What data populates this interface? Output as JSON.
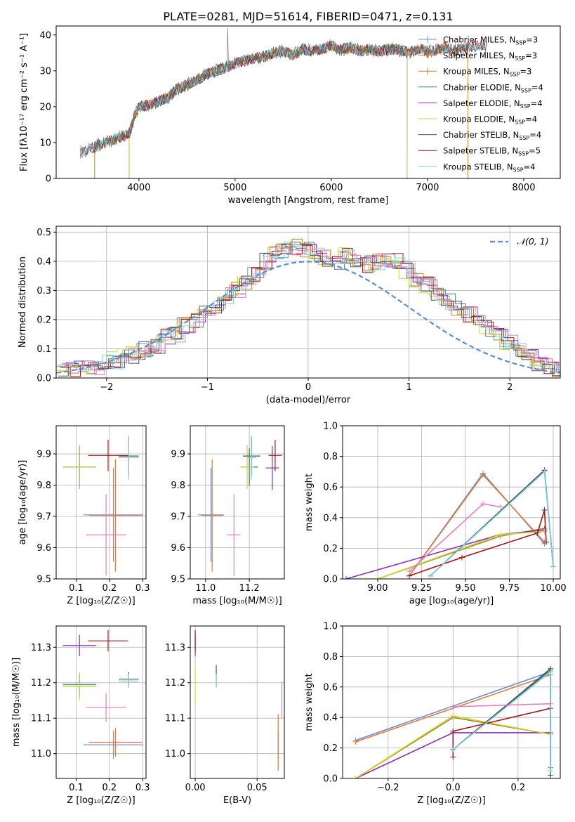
{
  "title": "PLATE=0281, MJD=51614, FIBERID=0471, z=0.131",
  "colors": {
    "Chabrier MILES": "#6c8ed8",
    "Salpeter MILES": "#e07b39",
    "Kroupa MILES": "#a88520",
    "Chabrier ELODIE": "#3f7f7f",
    "Salpeter ELODIE": "#8e2bb0",
    "Kroupa ELODIE": "#c8d83a",
    "Chabrier STELIB": "#505050",
    "Salpeter STELIB": "#a01818",
    "Kroupa STELIB": "#7fd0e0",
    "pink": "#e47cc4",
    "gauss": "#5a8fd8"
  },
  "chart_data": [
    {
      "id": "spectrum",
      "type": "line",
      "title": "PLATE=0281, MJD=51614, FIBERID=0471, z=0.131",
      "xlabel": "wavelength [Angstrom, rest frame]",
      "ylabel": "Flux [fλ10⁻¹⁷ erg cm⁻² s⁻¹ A⁻¹]",
      "xlim": [
        3140,
        8380
      ],
      "ylim": [
        0,
        42.5
      ],
      "xticks": [
        4000,
        5000,
        6000,
        7000,
        8000
      ],
      "yticks": [
        0,
        10,
        20,
        30,
        40
      ],
      "grid": false,
      "legend_position": "top-right",
      "x": [
        3390,
        3500,
        3600,
        3700,
        3800,
        3900,
        3950,
        4000,
        4100,
        4200,
        4300,
        4400,
        4500,
        4600,
        4700,
        4800,
        4900,
        5000,
        5100,
        5200,
        5300,
        5400,
        5500,
        5600,
        5700,
        5800,
        5900,
        6000,
        6100,
        6200,
        6300,
        6400,
        6500,
        6600,
        6700,
        6800,
        6900,
        7000,
        7100,
        7200,
        7300,
        7400,
        7500,
        7600
      ],
      "y": [
        7.5,
        8.5,
        9.5,
        10.5,
        11.5,
        12.5,
        17,
        20,
        20.5,
        21.5,
        22.5,
        25,
        26,
        27.5,
        29,
        30,
        31,
        32,
        33,
        33.5,
        34,
        35,
        35.5,
        34.5,
        36,
        35.5,
        36,
        37,
        36,
        36.5,
        35.5,
        36,
        35.5,
        36,
        36,
        35,
        36,
        35.5,
        36,
        36.5,
        35.5,
        36.5,
        37,
        37
      ],
      "series": [
        {
          "name": "Chabrier MILES, Nₛₛₚ=3",
          "legend": {
            "name": "Chabrier MILES, N",
            "sub": "SSP",
            "tail": "=3"
          },
          "x_range": [
            3540,
            7420
          ]
        },
        {
          "name": "Salpeter MILES, Nₛₛₚ=3",
          "legend": {
            "name": "Salpeter MILES, N",
            "sub": "SSP",
            "tail": "=3"
          },
          "x_range": [
            3540,
            7420
          ]
        },
        {
          "name": "Kroupa MILES, Nₛₛₚ=3",
          "legend": {
            "name": "Kroupa MILES, N",
            "sub": "SSP",
            "tail": "=3"
          },
          "x_range": [
            3540,
            7420
          ]
        },
        {
          "name": "Chabrier ELODIE, Nₛₛₚ=4",
          "legend": {
            "name": "Chabrier ELODIE, N",
            "sub": "SSP",
            "tail": "=4"
          },
          "x_range": [
            3900,
            6790
          ]
        },
        {
          "name": "Salpeter ELODIE, Nₛₛₚ=4",
          "legend": {
            "name": "Salpeter ELODIE, N",
            "sub": "SSP",
            "tail": "=4"
          },
          "x_range": [
            3900,
            6790
          ]
        },
        {
          "name": "Kroupa ELODIE, Nₛₛₚ=4",
          "legend": {
            "name": "Kroupa ELODIE, N",
            "sub": "SSP",
            "tail": "=4"
          },
          "x_range": [
            3900,
            6790
          ]
        },
        {
          "name": "Chabrier STELIB, Nₛₛₚ=4",
          "legend": {
            "name": "Chabrier STELIB, N",
            "sub": "SSP",
            "tail": "=4"
          },
          "x_range": [
            3390,
            8380
          ]
        },
        {
          "name": "Salpeter STELIB, Nₛₛₚ=5",
          "legend": {
            "name": "Salpeter STELIB, N",
            "sub": "SSP",
            "tail": "=5"
          },
          "x_range": [
            3390,
            8380
          ]
        },
        {
          "name": "Kroupa STELIB, Nₛₛₚ=4",
          "legend": {
            "name": "Kroupa STELIB, N",
            "sub": "SSP",
            "tail": "=4"
          },
          "x_range": [
            3390,
            8380
          ]
        }
      ]
    },
    {
      "id": "residuals",
      "type": "histogram",
      "xlabel": "(data-model)/error",
      "ylabel": "Normed distribution",
      "xlim": [
        -2.5,
        2.5
      ],
      "ylim": [
        0,
        0.52
      ],
      "xticks": [
        -2,
        -1,
        0,
        1,
        2
      ],
      "yticks": [
        0.0,
        0.1,
        0.2,
        0.3,
        0.4,
        0.5
      ],
      "grid": true,
      "legend": [
        "𝒩(0, 1)"
      ],
      "legend_position": "top-right",
      "bin_width": 0.1,
      "bin_start": -2.5,
      "values": [
        0.03,
        0.03,
        0.04,
        0.04,
        0.05,
        0.06,
        0.07,
        0.08,
        0.1,
        0.11,
        0.14,
        0.15,
        0.18,
        0.2,
        0.22,
        0.25,
        0.28,
        0.3,
        0.33,
        0.36,
        0.4,
        0.43,
        0.44,
        0.45,
        0.44,
        0.42,
        0.41,
        0.4,
        0.42,
        0.41,
        0.39,
        0.4,
        0.41,
        0.4,
        0.37,
        0.34,
        0.32,
        0.29,
        0.26,
        0.24,
        0.22,
        0.19,
        0.17,
        0.14,
        0.12,
        0.09,
        0.07,
        0.05,
        0.04,
        0.03
      ]
    },
    {
      "id": "age_vs_Z",
      "type": "scatter",
      "xlabel": "Z [log₁₀(Z/Z☉)]",
      "ylabel": "age  [log₁₀(age/yr)]",
      "xlim": [
        0.04,
        0.31
      ],
      "ylim": [
        9.5,
        9.99
      ],
      "xticks": [
        0.1,
        0.2,
        0.3
      ],
      "yticks": [
        9.5,
        9.6,
        9.7,
        9.8,
        9.9
      ],
      "grid": true,
      "points": [
        {
          "series": "Chabrier MILES",
          "x": 0.212,
          "y": 9.705,
          "xerr": 0.09,
          "yerr": 0.15
        },
        {
          "series": "Salpeter MILES",
          "x": 0.218,
          "y": 9.703,
          "xerr": 0.08,
          "yerr": 0.18
        },
        {
          "series": "Kroupa MILES",
          "x": 0.11,
          "y": 9.858,
          "xerr": 0.05,
          "yerr": 0.06
        },
        {
          "series": "Chabrier ELODIE",
          "x": 0.11,
          "y": 9.858,
          "xerr": 0.05,
          "yerr": 0.06
        },
        {
          "series": "Salpeter ELODIE",
          "x": 0.11,
          "y": 9.858,
          "xerr": 0.05,
          "yerr": 0.07
        },
        {
          "series": "Kroupa ELODIE",
          "x": 0.11,
          "y": 9.858,
          "xerr": 0.05,
          "yerr": 0.07
        },
        {
          "series": "Chabrier STELIB",
          "x": 0.258,
          "y": 9.893,
          "xerr": 0.03,
          "yerr": 0.06
        },
        {
          "series": "Salpeter STELIB",
          "x": 0.196,
          "y": 9.895,
          "xerr": 0.06,
          "yerr": 0.05
        },
        {
          "series": "Kroupa STELIB",
          "x": 0.258,
          "y": 9.888,
          "xerr": 0.03,
          "yerr": 0.07
        },
        {
          "series": "pink",
          "x": 0.19,
          "y": 9.641,
          "xerr": 0.06,
          "yerr": 0.13
        }
      ]
    },
    {
      "id": "age_vs_mass",
      "type": "scatter",
      "xlabel": "mass [log₁₀(M/M☉)]",
      "ylabel": "",
      "xlim": [
        10.93,
        11.36
      ],
      "ylim": [
        9.5,
        9.99
      ],
      "xticks": [
        11.0,
        11.2
      ],
      "yticks": [
        9.5,
        9.6,
        9.7,
        9.8,
        9.9
      ],
      "grid": true,
      "points": [
        {
          "series": "Chabrier MILES",
          "x": 11.025,
          "y": 9.705,
          "xerr": 0.06,
          "yerr": 0.15
        },
        {
          "series": "Salpeter MILES",
          "x": 11.03,
          "y": 9.703,
          "xerr": 0.05,
          "yerr": 0.18
        },
        {
          "series": "Kroupa MILES",
          "x": 11.2,
          "y": 9.858,
          "xerr": 0.04,
          "yerr": 0.06
        },
        {
          "series": "Chabrier ELODIE",
          "x": 11.2,
          "y": 9.858,
          "xerr": 0.04,
          "yerr": 0.06
        },
        {
          "series": "Salpeter ELODIE",
          "x": 11.305,
          "y": 9.855,
          "xerr": 0.03,
          "yerr": 0.07
        },
        {
          "series": "Kroupa ELODIE",
          "x": 11.19,
          "y": 9.858,
          "xerr": 0.03,
          "yerr": 0.07
        },
        {
          "series": "Chabrier STELIB",
          "x": 11.21,
          "y": 9.893,
          "xerr": 0.04,
          "yerr": 0.06
        },
        {
          "series": "Salpeter STELIB",
          "x": 11.318,
          "y": 9.895,
          "xerr": 0.03,
          "yerr": 0.05
        },
        {
          "series": "Kroupa STELIB",
          "x": 11.21,
          "y": 9.888,
          "xerr": 0.02,
          "yerr": 0.07
        },
        {
          "series": "pink",
          "x": 11.13,
          "y": 9.641,
          "xerr": 0.03,
          "yerr": 0.13
        }
      ]
    },
    {
      "id": "weight_vs_age",
      "type": "line",
      "xlabel": "age  [log₁₀(age/yr)]",
      "ylabel": "mass weight",
      "xlim": [
        8.8,
        10.04
      ],
      "ylim": [
        0,
        1.0
      ],
      "xticks": [
        9.0,
        9.25,
        9.5,
        9.75,
        10.0
      ],
      "yticks": [
        0.0,
        0.2,
        0.4,
        0.6,
        0.8,
        1.0
      ],
      "grid": true,
      "series": [
        {
          "name": "Chabrier MILES",
          "x": [
            9.18,
            9.6,
            9.95
          ],
          "y": [
            0.02,
            0.69,
            0.23
          ]
        },
        {
          "name": "Salpeter MILES",
          "x": [
            9.18,
            9.6,
            9.95
          ],
          "y": [
            0.02,
            0.68,
            0.24
          ]
        },
        {
          "name": "Kroupa MILES",
          "x": [
            9.0,
            9.7,
            9.95
          ],
          "y": [
            0.0,
            0.28,
            0.33
          ]
        },
        {
          "name": "Chabrier ELODIE",
          "x": [
            9.3,
            9.95,
            10.0
          ],
          "y": [
            0.02,
            0.71,
            0.08
          ]
        },
        {
          "name": "Salpeter ELODIE",
          "x": [
            8.82,
            9.7,
            9.95
          ],
          "y": [
            0.0,
            0.29,
            0.32
          ]
        },
        {
          "name": "Kroupa ELODIE",
          "x": [
            9.0,
            9.7,
            9.95
          ],
          "y": [
            0.0,
            0.29,
            0.31
          ]
        },
        {
          "name": "Chabrier STELIB",
          "x": [
            9.3,
            9.95,
            10.0
          ],
          "y": [
            0.02,
            0.71,
            0.08
          ]
        },
        {
          "name": "Salpeter STELIB",
          "x": [
            9.18,
            9.48,
            9.91,
            9.95,
            9.96
          ],
          "y": [
            0.02,
            0.14,
            0.3,
            0.45,
            0.24
          ]
        },
        {
          "name": "Kroupa STELIB",
          "x": [
            9.3,
            9.95,
            10.0
          ],
          "y": [
            0.02,
            0.7,
            0.08
          ]
        },
        {
          "name": "pink",
          "x": [
            9.18,
            9.6,
            9.7
          ],
          "y": [
            0.05,
            0.49,
            0.47
          ]
        }
      ]
    },
    {
      "id": "mass_vs_Z",
      "type": "scatter",
      "xlabel": "Z [log₁₀(Z/Z☉)]",
      "ylabel": "mass [log₁₀(M/M☉)]",
      "xlim": [
        0.04,
        0.31
      ],
      "ylim": [
        10.93,
        11.36
      ],
      "xticks": [
        0.1,
        0.2,
        0.3
      ],
      "yticks": [
        11.0,
        11.1,
        11.2,
        11.3
      ],
      "grid": true,
      "points": [
        {
          "series": "Chabrier MILES",
          "x": 0.212,
          "y": 11.025,
          "xerr": 0.09,
          "yerr": 0.04
        },
        {
          "series": "Salpeter MILES",
          "x": 0.218,
          "y": 11.032,
          "xerr": 0.08,
          "yerr": 0.04
        },
        {
          "series": "Kroupa MILES",
          "x": 0.11,
          "y": 11.19,
          "xerr": 0.05,
          "yerr": 0.03
        },
        {
          "series": "Chabrier ELODIE",
          "x": 0.11,
          "y": 11.195,
          "xerr": 0.05,
          "yerr": 0.03
        },
        {
          "series": "Salpeter ELODIE",
          "x": 0.11,
          "y": 11.305,
          "xerr": 0.05,
          "yerr": 0.03
        },
        {
          "series": "Kroupa ELODIE",
          "x": 0.11,
          "y": 11.19,
          "xerr": 0.05,
          "yerr": 0.04
        },
        {
          "series": "Chabrier STELIB",
          "x": 0.258,
          "y": 11.21,
          "xerr": 0.03,
          "yerr": 0.02
        },
        {
          "series": "Salpeter STELIB",
          "x": 0.196,
          "y": 11.318,
          "xerr": 0.06,
          "yerr": 0.03
        },
        {
          "series": "Kroupa STELIB",
          "x": 0.258,
          "y": 11.205,
          "xerr": 0.03,
          "yerr": 0.02
        },
        {
          "series": "pink",
          "x": 0.19,
          "y": 11.13,
          "xerr": 0.06,
          "yerr": 0.04
        }
      ]
    },
    {
      "id": "mass_vs_ebv",
      "type": "scatter",
      "xlabel": "E(B-V)",
      "ylabel": "",
      "xlim": [
        -0.004,
        0.072
      ],
      "ylim": [
        10.93,
        11.36
      ],
      "xticks": [
        0.0,
        0.05
      ],
      "yticks": [
        11.0,
        11.1,
        11.2,
        11.3
      ],
      "grid": true,
      "points": [
        {
          "series": "Chabrier MILES",
          "x": 0.067,
          "y": 11.025,
          "xerr": 0,
          "yerr": 0.04
        },
        {
          "series": "Salpeter MILES",
          "x": 0.067,
          "y": 11.032,
          "xerr": 0,
          "yerr": 0.08
        },
        {
          "series": "Kroupa ELODIE",
          "x": 0.0,
          "y": 11.19,
          "xerr": 0,
          "yerr": 0.05
        },
        {
          "series": "Salpeter ELODIE",
          "x": 0.0,
          "y": 11.305,
          "xerr": 0,
          "yerr": 0.03
        },
        {
          "series": "Salpeter STELIB",
          "x": 0.0,
          "y": 11.318,
          "xerr": 0,
          "yerr": 0.03
        },
        {
          "series": "Chabrier STELIB",
          "x": 0.017,
          "y": 11.22,
          "xerr": 0,
          "yerr": 0.03
        },
        {
          "series": "Kroupa STELIB",
          "x": 0.017,
          "y": 11.205,
          "xerr": 0,
          "yerr": 0.02
        },
        {
          "series": "pink",
          "x": 0.07,
          "y": 11.15,
          "xerr": 0,
          "yerr": 0.05
        }
      ]
    },
    {
      "id": "weight_vs_Z",
      "type": "line",
      "xlabel": "Z [log₁₀(Z/Z☉)]",
      "ylabel": "mass weight",
      "xlim": [
        -0.34,
        0.33
      ],
      "ylim": [
        0,
        1.0
      ],
      "xticks": [
        -0.2,
        0.0,
        0.2
      ],
      "yticks": [
        0.0,
        0.2,
        0.4,
        0.6,
        0.8,
        1.0
      ],
      "grid": true,
      "series": [
        {
          "name": "Chabrier MILES",
          "x": [
            -0.3,
            0.3
          ],
          "y": [
            0.25,
            0.7
          ]
        },
        {
          "name": "Salpeter MILES",
          "x": [
            -0.3,
            0.3
          ],
          "y": [
            0.24,
            0.68
          ]
        },
        {
          "name": "Kroupa MILES",
          "x": [
            -0.3,
            0.0,
            0.3
          ],
          "y": [
            0.0,
            0.4,
            0.29
          ]
        },
        {
          "name": "Chabrier ELODIE",
          "x": [
            0.0,
            0.3,
            0.3
          ],
          "y": [
            0.19,
            0.71,
            0.07
          ]
        },
        {
          "name": "Salpeter ELODIE",
          "x": [
            -0.3,
            0.0,
            0.3
          ],
          "y": [
            0.0,
            0.3,
            0.3
          ]
        },
        {
          "name": "Kroupa ELODIE",
          "x": [
            -0.3,
            0.0,
            0.3
          ],
          "y": [
            0.0,
            0.41,
            0.29
          ]
        },
        {
          "name": "Chabrier STELIB",
          "x": [
            0.0,
            0.3,
            0.3
          ],
          "y": [
            0.19,
            0.72,
            0.02
          ]
        },
        {
          "name": "Salpeter STELIB",
          "x": [
            0.0,
            0.0,
            0.3
          ],
          "y": [
            0.14,
            0.31,
            0.46
          ]
        },
        {
          "name": "Kroupa STELIB",
          "x": [
            0.0,
            0.3,
            0.3
          ],
          "y": [
            0.19,
            0.7,
            0.05
          ]
        },
        {
          "name": "pink",
          "x": [
            0.0,
            0.3
          ],
          "y": [
            0.47,
            0.49
          ]
        }
      ]
    }
  ]
}
